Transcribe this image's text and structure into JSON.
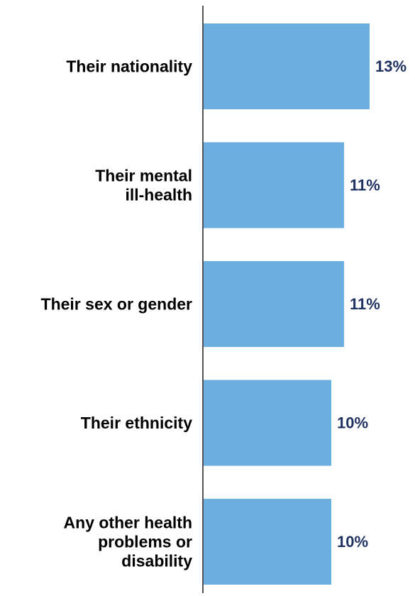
{
  "colors": {
    "bar": "#6caee0",
    "value_text": "#1f3262",
    "axis": "#555555",
    "label_text": "#000000"
  },
  "chart_data": {
    "type": "bar",
    "orientation": "horizontal",
    "categories": [
      [
        "Their nationality"
      ],
      [
        "Their mental",
        "ill-health"
      ],
      [
        "Their sex or gender"
      ],
      [
        "Their ethnicity"
      ],
      [
        "Any other health",
        "problems or",
        "disability"
      ]
    ],
    "values": [
      13,
      11,
      11,
      10,
      10
    ],
    "value_labels": [
      "13%",
      "11%",
      "11%",
      "10%",
      "10%"
    ],
    "title": "",
    "xlabel": "",
    "ylabel": "",
    "grid": false,
    "legend": "none"
  }
}
